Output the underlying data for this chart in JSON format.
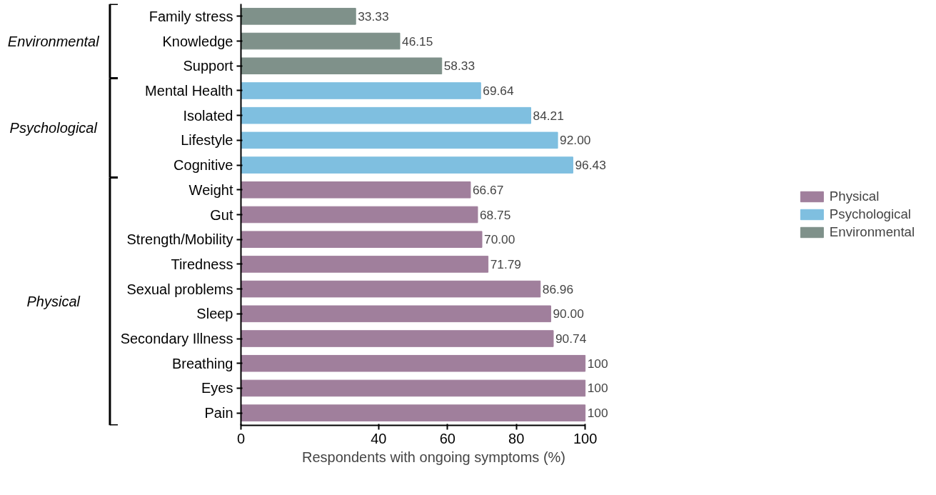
{
  "chart_data": {
    "type": "bar",
    "orientation": "horizontal",
    "xlabel": "Respondents with ongoing symptoms (%)",
    "categories": [
      "Family stress",
      "Knowledge",
      "Support",
      "Mental Health",
      "Isolated",
      "Lifestyle",
      "Cognitive",
      "Weight",
      "Gut",
      "Strength/Mobility",
      "Tiredness",
      "Sexual problems",
      "Sleep",
      "Secondary Illness",
      "Breathing",
      "Eyes",
      "Pain"
    ],
    "series": [
      {
        "name": "Physical",
        "color": "#a07f9c",
        "values": [
          null,
          null,
          null,
          null,
          null,
          null,
          null,
          66.67,
          68.75,
          70.0,
          71.79,
          86.96,
          90.0,
          90.74,
          100,
          100,
          100
        ],
        "value_labels": [
          null,
          null,
          null,
          null,
          null,
          null,
          null,
          "66.67",
          "68.75",
          "70.00",
          "71.79",
          "86.96",
          "90.00",
          "90.74",
          "100",
          "100",
          "100"
        ]
      },
      {
        "name": "Psychological",
        "color": "#7fbfe0",
        "values": [
          null,
          null,
          null,
          69.64,
          84.21,
          92.0,
          96.43,
          null,
          null,
          null,
          null,
          null,
          null,
          null,
          null,
          null,
          null
        ],
        "value_labels": [
          null,
          null,
          null,
          "69.64",
          "84.21",
          "92.00",
          "96.43",
          null,
          null,
          null,
          null,
          null,
          null,
          null,
          null,
          null,
          null
        ]
      },
      {
        "name": "Environmental",
        "color": "#7f918a",
        "values": [
          33.33,
          46.15,
          58.33,
          null,
          null,
          null,
          null,
          null,
          null,
          null,
          null,
          null,
          null,
          null,
          null,
          null,
          null
        ],
        "value_labels": [
          "33.33",
          "46.15",
          "58.33",
          null,
          null,
          null,
          null,
          null,
          null,
          null,
          null,
          null,
          null,
          null,
          null,
          null,
          null
        ]
      }
    ],
    "annotations": [
      "Environmental",
      "Psychological",
      "Physical"
    ],
    "xlim": [
      0,
      100
    ],
    "xticks": [
      0,
      40,
      60,
      80,
      100
    ],
    "grid": false,
    "legend": "right"
  }
}
